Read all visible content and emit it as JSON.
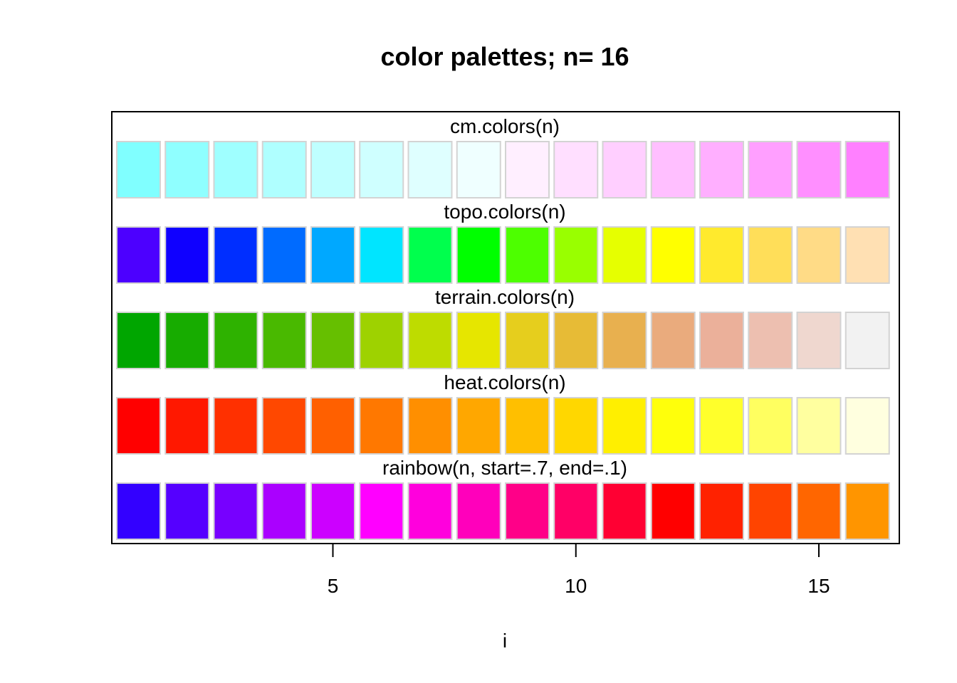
{
  "chart_data": {
    "type": "heatmap",
    "title": "color palettes;  n= 16",
    "xlabel": "i",
    "ylabel": "",
    "xlim": [
      0.5,
      16.5
    ],
    "x_ticks": [
      5,
      10,
      15
    ],
    "x_tick_labels": [
      "5",
      "10",
      "15"
    ],
    "n": 16,
    "rows": [
      {
        "label": "cm.colors(n)",
        "colors": [
          "#80FFFF",
          "#8FFFFF",
          "#9FFFFF",
          "#AFFFFF",
          "#BFFFFF",
          "#CFFFFF",
          "#DFFFFF",
          "#EFFFFF",
          "#FFEFFF",
          "#FFDFFF",
          "#FFCFFF",
          "#FFBFFF",
          "#FFAFFF",
          "#FF9FFF",
          "#FF8FFF",
          "#FF80FF"
        ]
      },
      {
        "label": "topo.colors(n)",
        "colors": [
          "#4C00FF",
          "#0F00FF",
          "#002EFF",
          "#006BFF",
          "#00A8FF",
          "#00E5FF",
          "#00FF4D",
          "#00FF00",
          "#4DFF00",
          "#99FF00",
          "#E6FF00",
          "#FFFF00",
          "#FFEA2D",
          "#FFDE59",
          "#FFDB86",
          "#FFE0B3"
        ]
      },
      {
        "label": "terrain.colors(n)",
        "colors": [
          "#00A600",
          "#17AC00",
          "#2EB200",
          "#49B900",
          "#66BF00",
          "#9ED200",
          "#BEDC00",
          "#E6E600",
          "#E6CE1D",
          "#E7BB36",
          "#E8B04F",
          "#EAAB7D",
          "#EBB09A",
          "#EDBFB0",
          "#EFD7CF",
          "#F2F2F2"
        ]
      },
      {
        "label": "heat.colors(n)",
        "colors": [
          "#FF0000",
          "#FF1800",
          "#FF3000",
          "#FF4800",
          "#FF6000",
          "#FF7800",
          "#FF8F00",
          "#FFA700",
          "#FFBF00",
          "#FFD700",
          "#FFEF00",
          "#FFFF0B",
          "#FFFF2B",
          "#FFFF60",
          "#FFFF9F",
          "#FFFFDF"
        ]
      },
      {
        "label": "rainbow(n, start=.7, end=.1)",
        "colors": [
          "#3300FF",
          "#5500FF",
          "#7700FF",
          "#AA00FF",
          "#CC00FF",
          "#FF00FF",
          "#FF00DD",
          "#FF00BB",
          "#FF0088",
          "#FF0066",
          "#FF0033",
          "#FF0000",
          "#FF2200",
          "#FF4400",
          "#FF6600",
          "#FF9500"
        ]
      }
    ]
  }
}
